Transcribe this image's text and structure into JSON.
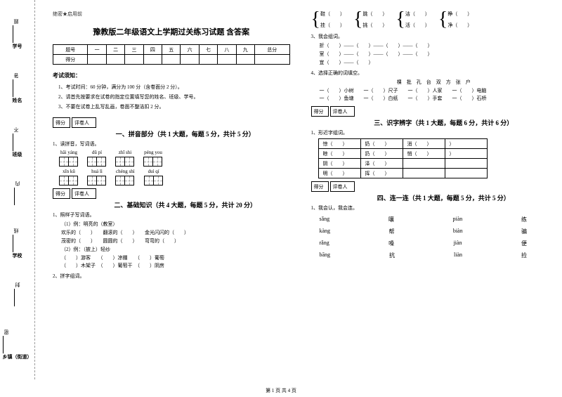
{
  "confidential": "绝密★启用前",
  "title": "豫教版二年级语文上学期过关练习试题 含答案",
  "score_header": [
    "题号",
    "一",
    "二",
    "三",
    "四",
    "五",
    "六",
    "七",
    "八",
    "九",
    "总分"
  ],
  "score_row_label": "得分",
  "exam_heading": "考试须知：",
  "rules": [
    "1、考试时间：60 分钟，满分为 100 分（含卷面分 2 分）。",
    "2、请首先按要求在试卷的指定位置填写您的姓名、班级、学号。",
    "3、不要在试卷上乱写乱画，卷面不整洁扣 2 分。"
  ],
  "scorebox": {
    "s1": "得分",
    "s2": "评卷人"
  },
  "sec1": {
    "title": "一、拼音部分（共 1 大题，每题 5 分，共计 5 分）",
    "q1": "1、读拼音，写词语。",
    "row1": [
      "hǎi  yáng",
      "dǔ  pí",
      "zhī  shi",
      "péng  you"
    ],
    "row2": [
      "xīn  kǔ",
      "huá  lì",
      "chéng shì",
      "duì  qí"
    ]
  },
  "sec2": {
    "title": "二、基础知识（共 4 大题，每题 5 分，共计 20 分）",
    "q1": "1、照样子写词语。",
    "lines1": [
      "（1）例：明亮的（教室）",
      "欢乐的（　　）　　翻滚的（　　）　　金光闪闪的（　　）",
      "茂密的（　　）　　圆圆的（　　）　　弯弯的（　　）",
      "（2）例：（披上）轻纱",
      "（　　）游客　　（　　）凉棚　　（　　）葡萄",
      "（　　）木架子　（　　）葡萄干　（　　）阴房"
    ],
    "q2": "2、拼字组词。"
  },
  "braces": [
    {
      "top": "鞋（　　）",
      "bot": "挂（　　）"
    },
    {
      "top": "跳（　　）",
      "bot": "挑（　　）"
    },
    {
      "top": "洁（　　）",
      "bot": "活（　　）"
    },
    {
      "top": "睁（　　）",
      "bot": "净（　　）"
    }
  ],
  "sec2b": {
    "q3": "3、我会组词。",
    "lines3": [
      "折（　　）——（　　）——（　　）——（　　）",
      "室（　　）——（　　）——（　　）——（　　）",
      "宜（　　）——（　　）"
    ],
    "q4": "4、选择正确的词填空。",
    "words": "棵　批　孔　台　双　方　张　户",
    "lines4": [
      "一（　　）小树　　一（　　）尺子　　一（　　）人家　　一（　　）电脑",
      "一（　　）鱼塘　　一（　　）白纸　　一（　　）手套　　一（　　）石桥"
    ]
  },
  "sec3": {
    "title": "三、识字辨字（共 1 大题，每题 6 分，共计 6 分）",
    "q1": "1、形近字组词。",
    "rows": [
      [
        "惊（　　）",
        "奶（　　）",
        "消（　　）",
        "）"
      ],
      [
        "晾（　　）",
        "扔（　　）",
        "悄（　　）",
        "）"
      ],
      [
        "阴（　　）",
        "泽（　　）",
        "",
        ""
      ],
      [
        "明（　　）",
        "挥（　　）",
        "",
        ""
      ]
    ]
  },
  "sec4": {
    "title": "四、连一连（共 1 大题，每题 5 分，共计 5 分）",
    "q1": "1、我会认，我会连。",
    "rows": [
      [
        "sǎng",
        "嚷",
        "piàn",
        "练"
      ],
      [
        "kàng",
        "帮",
        "biàn",
        "骗"
      ],
      [
        "rǎng",
        "嗓",
        "jiàn",
        "便"
      ],
      [
        "bāng",
        "抗",
        "liàn",
        "捡"
      ]
    ]
  },
  "binding": [
    {
      "field": "学号",
      "label": "题"
    },
    {
      "field": "姓名",
      "label": "答"
    },
    {
      "field": "班级",
      "label": "不"
    },
    {
      "field": "",
      "label": "内"
    },
    {
      "field": "学校",
      "label": "线"
    },
    {
      "field": "",
      "label": "封"
    },
    {
      "field": "乡镇（街道）",
      "label": "密"
    }
  ],
  "footer": "第 1 页  共 4 页"
}
